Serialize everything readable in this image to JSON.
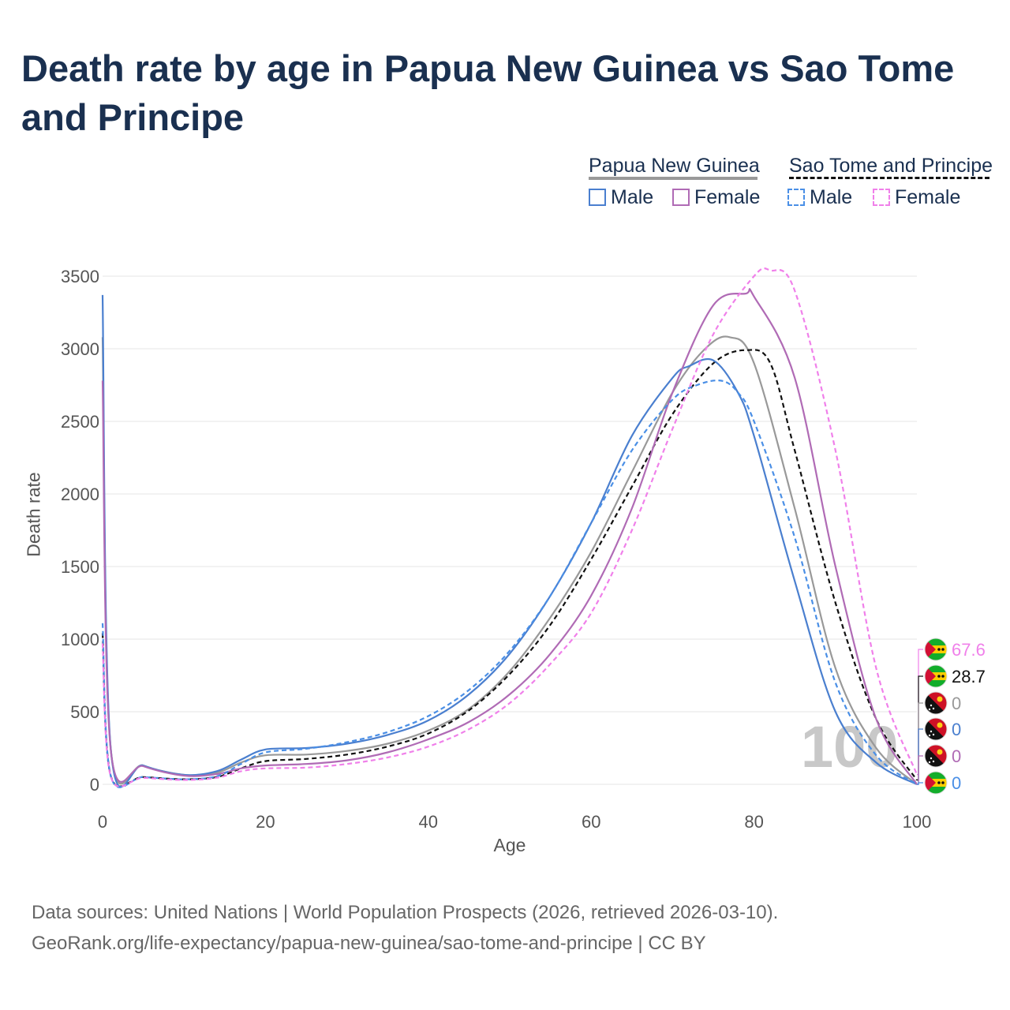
{
  "title": "Death rate by age in Papua New Guinea vs Sao Tome and Principe",
  "legend": {
    "groups": [
      {
        "name": "Papua New Guinea",
        "style": "solid",
        "color": "#999999",
        "items": [
          "Male",
          "Female"
        ]
      },
      {
        "name": "Sao Tome and Principe",
        "style": "dashed",
        "color": "#111111",
        "items": [
          "Male",
          "Female"
        ]
      }
    ]
  },
  "source": {
    "line1": "Data sources: United Nations | World Population Prospects (2026, retrieved 2026-03-10).",
    "line2": "GeoRank.org/life-expectancy/papua-new-guinea/sao-tome-and-principe | CC BY"
  },
  "colors": {
    "male_solid": "#4a7fcf",
    "female_solid": "#b06bb5",
    "total_solid": "#999999",
    "male_dashed": "#4a8fe6",
    "female_dashed": "#f080ea",
    "total_dashed": "#111111"
  },
  "chart_data": {
    "type": "line",
    "title": "Death rate by age in Papua New Guinea vs Sao Tome and Principe",
    "xlabel": "Age",
    "ylabel": "Death rate",
    "xlim": [
      0,
      100
    ],
    "ylim": [
      0,
      3500
    ],
    "xticks": [
      0,
      20,
      40,
      60,
      80,
      100
    ],
    "yticks": [
      0,
      500,
      1000,
      1500,
      2000,
      2500,
      3000,
      3500
    ],
    "watermark": "100",
    "series": [
      {
        "name": "Papua New Guinea Total",
        "country": "Papua New Guinea",
        "sex": "Total",
        "color": "#999999",
        "dash": false,
        "end_label": "0",
        "label_color": "#999999",
        "x": [
          0,
          1,
          5,
          10,
          14,
          17,
          20,
          25,
          30,
          35,
          40,
          45,
          50,
          55,
          60,
          65,
          70,
          74,
          77,
          80,
          85,
          90,
          95,
          100
        ],
        "y": [
          3080,
          250,
          130,
          65,
          80,
          150,
          200,
          205,
          230,
          280,
          370,
          520,
          780,
          1150,
          1600,
          2150,
          2700,
          3000,
          3080,
          2900,
          1900,
          800,
          250,
          0
        ]
      },
      {
        "name": "Sao Tome and Principe Total",
        "country": "Sao Tome and Principe",
        "sex": "Total",
        "color": "#111111",
        "dash": true,
        "end_label": "28.7",
        "label_color": "#111111",
        "x": [
          0,
          1,
          5,
          10,
          14,
          17,
          20,
          25,
          30,
          35,
          40,
          45,
          50,
          55,
          60,
          65,
          70,
          75,
          79,
          82,
          85,
          90,
          95,
          100
        ],
        "y": [
          1040,
          60,
          50,
          35,
          50,
          110,
          160,
          175,
          205,
          260,
          350,
          510,
          760,
          1100,
          1550,
          2050,
          2550,
          2900,
          2990,
          2900,
          2300,
          1250,
          450,
          28.7
        ]
      },
      {
        "name": "Papua New Guinea Male",
        "country": "Papua New Guinea",
        "sex": "Male",
        "color": "#4a7fcf",
        "dash": false,
        "end_label": "0",
        "label_color": "#4a7fcf",
        "x": [
          0,
          1,
          5,
          10,
          14,
          17,
          20,
          25,
          30,
          35,
          40,
          45,
          50,
          55,
          60,
          65,
          70,
          72,
          75,
          78,
          80,
          85,
          90,
          95,
          100
        ],
        "y": [
          3370,
          250,
          130,
          65,
          90,
          170,
          240,
          250,
          280,
          340,
          440,
          620,
          900,
          1300,
          1800,
          2400,
          2800,
          2880,
          2920,
          2700,
          2400,
          1400,
          500,
          150,
          0
        ]
      },
      {
        "name": "Papua New Guinea Female",
        "country": "Papua New Guinea",
        "sex": "Female",
        "color": "#b06bb5",
        "dash": false,
        "end_label": "0",
        "label_color": "#b06bb5",
        "x": [
          0,
          1,
          5,
          10,
          14,
          17,
          20,
          25,
          30,
          35,
          40,
          45,
          50,
          55,
          60,
          65,
          70,
          75,
          79,
          80,
          85,
          90,
          95,
          100
        ],
        "y": [
          2780,
          240,
          125,
          60,
          70,
          110,
          130,
          140,
          165,
          220,
          310,
          430,
          620,
          900,
          1300,
          1900,
          2700,
          3300,
          3380,
          3360,
          2800,
          1500,
          450,
          0
        ]
      },
      {
        "name": "Sao Tome and Principe Male",
        "country": "Sao Tome and Principe",
        "sex": "Male",
        "color": "#4a8fe6",
        "dash": true,
        "end_label": "0",
        "label_color": "#4a8fe6",
        "x": [
          0,
          1,
          5,
          10,
          14,
          17,
          20,
          25,
          30,
          35,
          40,
          45,
          50,
          55,
          60,
          65,
          70,
          73,
          76,
          78,
          80,
          85,
          90,
          95,
          100
        ],
        "y": [
          1110,
          60,
          50,
          35,
          55,
          140,
          220,
          245,
          290,
          360,
          470,
          650,
          920,
          1300,
          1800,
          2300,
          2650,
          2750,
          2780,
          2700,
          2500,
          1700,
          700,
          200,
          0
        ]
      },
      {
        "name": "Sao Tome and Principe Female",
        "country": "Sao Tome and Principe",
        "sex": "Female",
        "color": "#f080ea",
        "dash": true,
        "end_label": "67.6",
        "label_color": "#f080ea",
        "x": [
          0,
          1,
          5,
          10,
          14,
          17,
          20,
          25,
          30,
          35,
          40,
          45,
          50,
          55,
          60,
          65,
          70,
          75,
          80,
          82,
          85,
          90,
          95,
          100
        ],
        "y": [
          970,
          55,
          45,
          30,
          45,
          90,
          110,
          115,
          140,
          185,
          260,
          380,
          560,
          830,
          1180,
          1750,
          2450,
          3100,
          3500,
          3540,
          3400,
          2300,
          800,
          67.6
        ]
      }
    ]
  }
}
